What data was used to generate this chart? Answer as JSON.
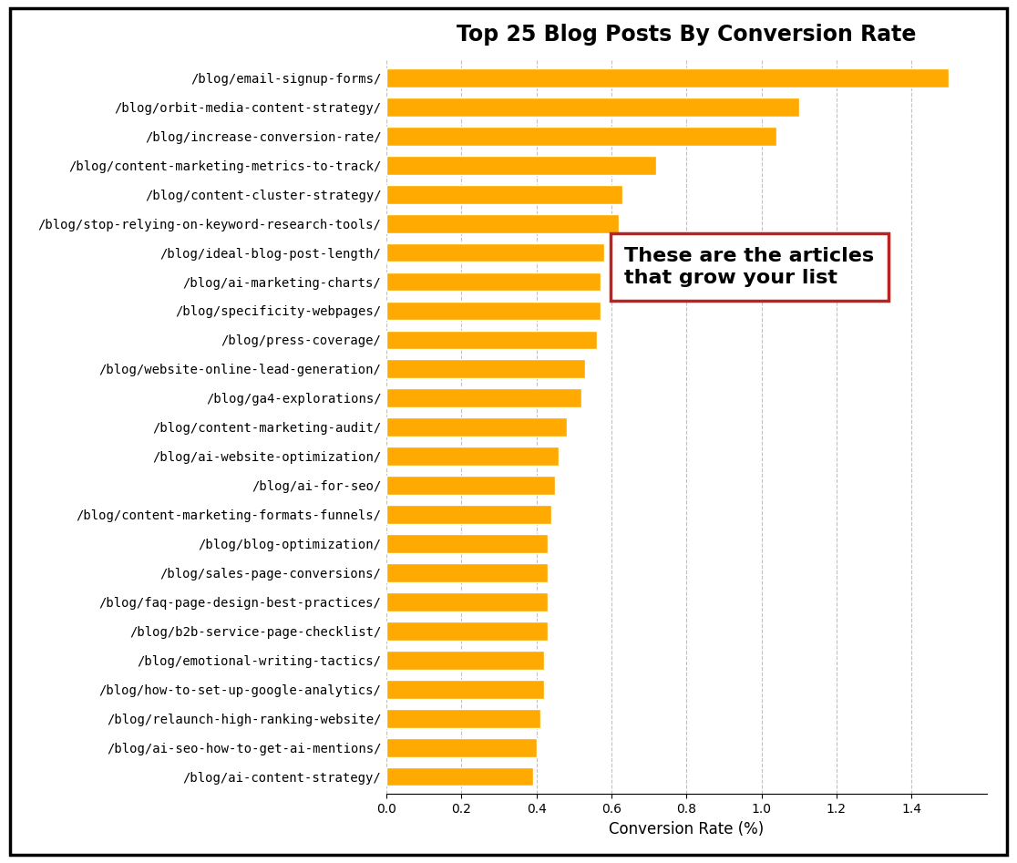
{
  "title": "Top 25 Blog Posts By Conversion Rate",
  "xlabel": "Conversion Rate (%)",
  "bar_color": "#FFAA00",
  "categories": [
    "/blog/email-signup-forms/",
    "/blog/orbit-media-content-strategy/",
    "/blog/increase-conversion-rate/",
    "/blog/content-marketing-metrics-to-track/",
    "/blog/content-cluster-strategy/",
    "/blog/stop-relying-on-keyword-research-tools/",
    "/blog/ideal-blog-post-length/",
    "/blog/ai-marketing-charts/",
    "/blog/specificity-webpages/",
    "/blog/press-coverage/",
    "/blog/website-online-lead-generation/",
    "/blog/ga4-explorations/",
    "/blog/content-marketing-audit/",
    "/blog/ai-website-optimization/",
    "/blog/ai-for-seo/",
    "/blog/content-marketing-formats-funnels/",
    "/blog/blog-optimization/",
    "/blog/sales-page-conversions/",
    "/blog/faq-page-design-best-practices/",
    "/blog/b2b-service-page-checklist/",
    "/blog/emotional-writing-tactics/",
    "/blog/how-to-set-up-google-analytics/",
    "/blog/relaunch-high-ranking-website/",
    "/blog/ai-seo-how-to-get-ai-mentions/",
    "/blog/ai-content-strategy/"
  ],
  "values": [
    1.5,
    1.1,
    1.04,
    0.72,
    0.63,
    0.62,
    0.58,
    0.57,
    0.57,
    0.56,
    0.53,
    0.52,
    0.48,
    0.46,
    0.45,
    0.44,
    0.43,
    0.43,
    0.43,
    0.43,
    0.42,
    0.42,
    0.41,
    0.4,
    0.39
  ],
  "xlim": [
    0,
    1.6
  ],
  "annotation_text": "These are the articles\nthat grow your list",
  "annotation_box_color": "#ffffff",
  "annotation_border_color": "#bb2222",
  "background_color": "#ffffff",
  "grid_color": "#bbbbbb",
  "outer_border_color": "#000000"
}
